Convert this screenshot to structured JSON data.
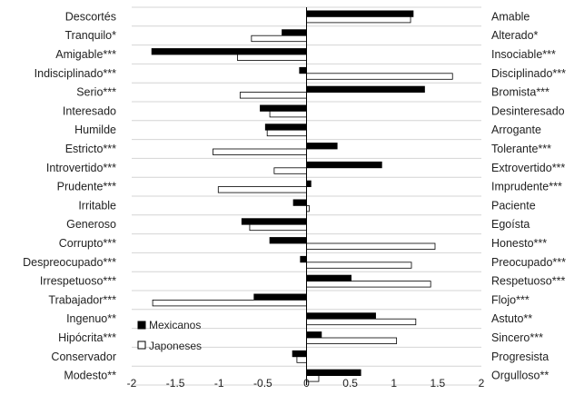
{
  "chart_data": {
    "type": "bar",
    "orientation": "horizontal",
    "left_labels": [
      "Descortés",
      "Tranquilo*",
      "Amigable***",
      "Indisciplinado***",
      "Serio***",
      "Interesado",
      "Humilde",
      "Estricto***",
      "Introvertido***",
      "Prudente***",
      "Irritable",
      "Generoso",
      "Corrupto***",
      "Despreocupado***",
      "Irrespetuoso***",
      "Trabajador***",
      "Ingenuo**",
      "Hipócrita***",
      "Conservador",
      "Modesto**"
    ],
    "right_labels": [
      "Amable",
      "Alterado*",
      "Insociable***",
      "Disciplinado***",
      "Bromista***",
      "Desinteresado",
      "Arrogante",
      "Tolerante***",
      "Extrovertido***",
      "Imprudente***",
      "Paciente",
      "Egoísta",
      "Honesto***",
      "Preocupado***",
      "Respetuoso***",
      "Flojo***",
      "Astuto**",
      "Sincero***",
      "Progresista",
      "Orgulloso**"
    ],
    "series": [
      {
        "name": "Mexicanos",
        "color": "#000000",
        "values": [
          1.22,
          -0.28,
          -1.77,
          -0.08,
          1.35,
          -0.53,
          -0.47,
          0.35,
          0.86,
          0.05,
          -0.15,
          -0.74,
          -0.42,
          -0.07,
          0.51,
          -0.6,
          0.79,
          0.17,
          -0.16,
          0.62
        ]
      },
      {
        "name": "Japoneses",
        "color": "#ffffff",
        "values": [
          1.19,
          -0.63,
          -0.79,
          1.67,
          -0.76,
          -0.42,
          -0.45,
          -1.07,
          -0.37,
          -1.01,
          0.03,
          -0.65,
          1.47,
          1.2,
          1.42,
          -1.76,
          1.25,
          1.03,
          -0.11,
          0.14
        ]
      }
    ],
    "xlim": [
      -2,
      2
    ],
    "xticks": [
      "-2",
      "-1.5",
      "-1",
      "-0.5",
      "0",
      "0.5",
      "1",
      "1.5",
      "2"
    ],
    "grid": "horizontal",
    "legend_position": "bottom-left"
  }
}
